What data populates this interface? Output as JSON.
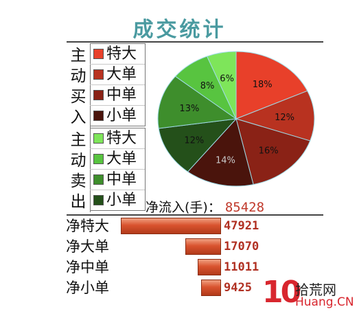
{
  "title": "成交统计",
  "colors": {
    "title": "#4a9aa0",
    "buy_large_xl": "#e8402a",
    "buy_large": "#b83220",
    "buy_medium": "#8a2216",
    "buy_small": "#4a140c",
    "sell_large_xl": "#7ee55a",
    "sell_large": "#58c440",
    "sell_medium": "#3e8e2c",
    "sell_small": "#24501a",
    "net_value": "#b03022"
  },
  "buy_group": {
    "label": "主动买入",
    "items": [
      {
        "label": "特大",
        "color": "#e8402a"
      },
      {
        "label": "大单",
        "color": "#b83220"
      },
      {
        "label": "中单",
        "color": "#8a2216"
      },
      {
        "label": "小单",
        "color": "#4a140c"
      }
    ]
  },
  "sell_group": {
    "label": "主动卖出",
    "items": [
      {
        "label": "特大",
        "color": "#7ee55a"
      },
      {
        "label": "大单",
        "color": "#58c440"
      },
      {
        "label": "中单",
        "color": "#3e8e2c"
      },
      {
        "label": "小单",
        "color": "#24501a"
      }
    ]
  },
  "chart_data": {
    "type": "pie",
    "slices": [
      {
        "label": "18%",
        "value": 18,
        "color": "#e8402a"
      },
      {
        "label": "12%",
        "value": 12,
        "color": "#b83220"
      },
      {
        "label": "16%",
        "value": 16,
        "color": "#8a2216"
      },
      {
        "label": "14%",
        "value": 14,
        "color": "#4a140c"
      },
      {
        "label": "12%",
        "value": 12,
        "color": "#24501a"
      },
      {
        "label": "13%",
        "value": 13,
        "color": "#3e8e2c"
      },
      {
        "label": "8%",
        "value": 8,
        "color": "#58c440"
      },
      {
        "label": "6%",
        "value": 6,
        "color": "#7ee55a"
      }
    ]
  },
  "net_flow": {
    "label": "净流入(手)：",
    "value": "85428"
  },
  "net_rows": [
    {
      "label": "净特大",
      "value": "47921",
      "amount": 47921
    },
    {
      "label": "净大单",
      "value": "17070",
      "amount": 17070
    },
    {
      "label": "净中单",
      "value": "11011",
      "amount": 11011
    },
    {
      "label": "净小单",
      "value": "9425",
      "amount": 9425
    }
  ],
  "watermark": {
    "mark": "10",
    "name": "拾荒网",
    "domain": "Huang.CN"
  }
}
